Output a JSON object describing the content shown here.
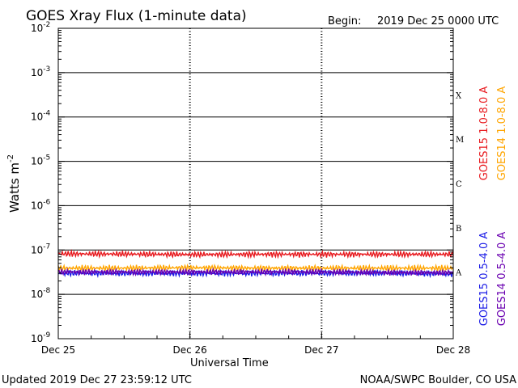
{
  "chart_data": {
    "type": "line",
    "title": "GOES Xray Flux (1-minute data)",
    "begin_label": "Begin:",
    "begin_value": "2019 Dec 25 0000 UTC",
    "xlabel": "Universal Time",
    "ylabel": "Watts m",
    "ylabel_exponent": "-2",
    "yscale": "log",
    "ylim": [
      1e-09,
      0.01
    ],
    "xlim": [
      "2019-12-25T00:00",
      "2019-12-28T00:00"
    ],
    "x_ticks": [
      {
        "label": "Dec 25",
        "x": "2019-12-25T00:00"
      },
      {
        "label": "Dec 26",
        "x": "2019-12-26T00:00"
      },
      {
        "label": "Dec 27",
        "x": "2019-12-27T00:00"
      },
      {
        "label": "Dec 28",
        "x": "2019-12-28T00:00"
      }
    ],
    "y_ticks": [
      {
        "base": "10",
        "exp": "-9",
        "value": 1e-09
      },
      {
        "base": "10",
        "exp": "-8",
        "value": 1e-08
      },
      {
        "base": "10",
        "exp": "-7",
        "value": 1e-07
      },
      {
        "base": "10",
        "exp": "-6",
        "value": 1e-06
      },
      {
        "base": "10",
        "exp": "-5",
        "value": 1e-05
      },
      {
        "base": "10",
        "exp": "-4",
        "value": 0.0001
      },
      {
        "base": "10",
        "exp": "-3",
        "value": 0.001
      },
      {
        "base": "10",
        "exp": "-2",
        "value": 0.01
      }
    ],
    "flare_classes": [
      {
        "label": "A",
        "lower": 1e-08
      },
      {
        "label": "B",
        "lower": 1e-07
      },
      {
        "label": "C",
        "lower": 1e-06
      },
      {
        "label": "M",
        "lower": 1e-05
      },
      {
        "label": "X",
        "lower": 0.0001
      }
    ],
    "grid": "horizontal lines at each decade from 1e-8 to 1e-3; dashed verticals at day boundaries",
    "series": [
      {
        "name": "GOES15 1.0-8.0 A",
        "color": "#e8191e",
        "x": [
          "2019-12-25T00:00",
          "2019-12-25T12:00",
          "2019-12-26T00:00",
          "2019-12-26T12:00",
          "2019-12-27T00:00",
          "2019-12-27T12:00",
          "2019-12-28T00:00"
        ],
        "values": [
          8.2e-08,
          8.1e-08,
          7.9e-08,
          8e-08,
          8e-08,
          8e-08,
          8e-08
        ]
      },
      {
        "name": "GOES14 1.0-8.0 A",
        "color": "#ffa500",
        "x": [
          "2019-12-25T00:00",
          "2019-12-25T12:00",
          "2019-12-26T00:00",
          "2019-12-26T12:00",
          "2019-12-27T00:00",
          "2019-12-27T12:00",
          "2019-12-28T00:00"
        ],
        "values": [
          3.9e-08,
          3.9e-08,
          4e-08,
          3.9e-08,
          3.9e-08,
          3.9e-08,
          3.9e-08
        ]
      },
      {
        "name": "GOES15 0.5-4.0 A",
        "color": "#1a1ae6",
        "x": [
          "2019-12-25T00:00",
          "2019-12-25T12:00",
          "2019-12-26T00:00",
          "2019-12-26T12:00",
          "2019-12-27T00:00",
          "2019-12-27T12:00",
          "2019-12-28T00:00"
        ],
        "values": [
          3e-08,
          3e-08,
          3e-08,
          3e-08,
          3e-08,
          3e-08,
          2.9e-08
        ]
      },
      {
        "name": "GOES14 0.5-4.0 A",
        "color": "#6a00b0",
        "x": [
          "2019-12-25T00:00",
          "2019-12-25T12:00",
          "2019-12-26T00:00",
          "2019-12-26T12:00",
          "2019-12-27T00:00",
          "2019-12-27T12:00",
          "2019-12-28T00:00"
        ],
        "values": [
          3.2e-08,
          3.2e-08,
          3.2e-08,
          3.2e-08,
          3.2e-08,
          3.1e-08,
          3.1e-08
        ]
      }
    ]
  },
  "footer": {
    "updated": "Updated 2019 Dec 27 23:59:12 UTC",
    "credit": "NOAA/SWPC Boulder, CO USA"
  }
}
